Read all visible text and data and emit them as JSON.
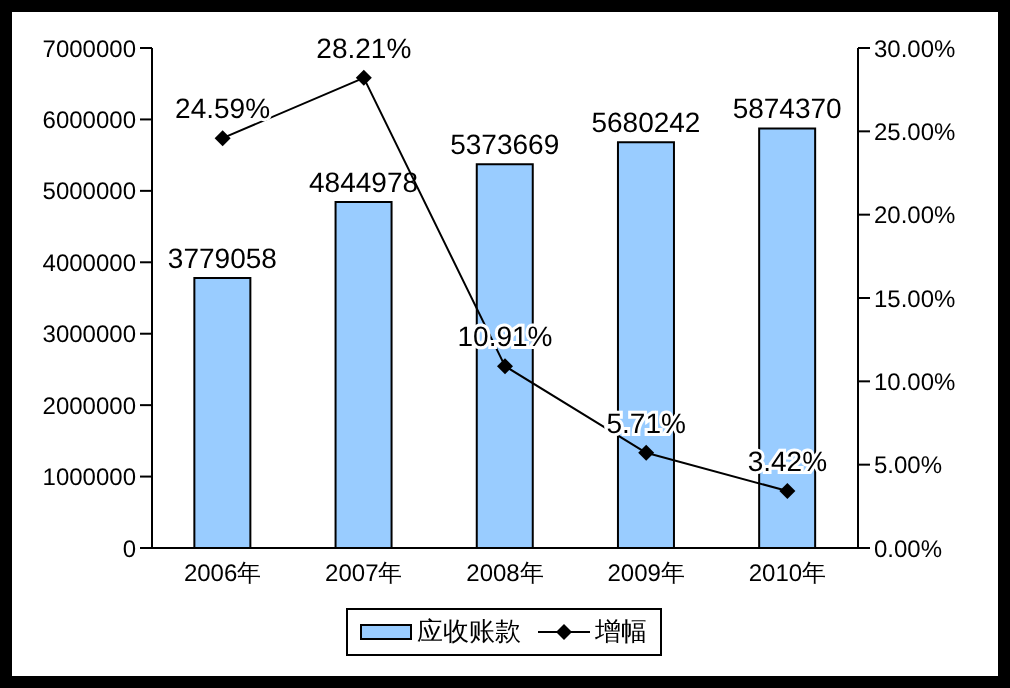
{
  "chart_data": {
    "type": "bar",
    "categories": [
      "2006年",
      "2007年",
      "2008年",
      "2009年",
      "2010年"
    ],
    "series": [
      {
        "name": "应收账款",
        "color": "#99ccff",
        "values": [
          3779058,
          4844978,
          5373669,
          5680242,
          5874370
        ],
        "data_labels": true
      },
      {
        "name": "增幅",
        "type": "line",
        "axis": "y2",
        "color": "#000000",
        "marker": "diamond",
        "values": [
          24.59,
          28.21,
          10.91,
          5.71,
          3.42
        ],
        "value_labels": [
          "24.59%",
          "28.21%",
          "10.91%",
          "5.71%",
          "3.42%"
        ]
      }
    ],
    "ylim": [
      0,
      7000000
    ],
    "yticks": [
      0,
      1000000,
      2000000,
      3000000,
      4000000,
      5000000,
      6000000,
      7000000
    ],
    "y2lim": [
      0,
      30
    ],
    "y2ticks": [
      {
        "value": 0,
        "label": "0.00%"
      },
      {
        "value": 5,
        "label": "5.00%"
      },
      {
        "value": 10,
        "label": "10.00%"
      },
      {
        "value": 15,
        "label": "15.00%"
      },
      {
        "value": 20,
        "label": "20.00%"
      },
      {
        "value": 25,
        "label": "25.00%"
      },
      {
        "value": 30,
        "label": "30.00%"
      }
    ],
    "legend": "bottom"
  }
}
